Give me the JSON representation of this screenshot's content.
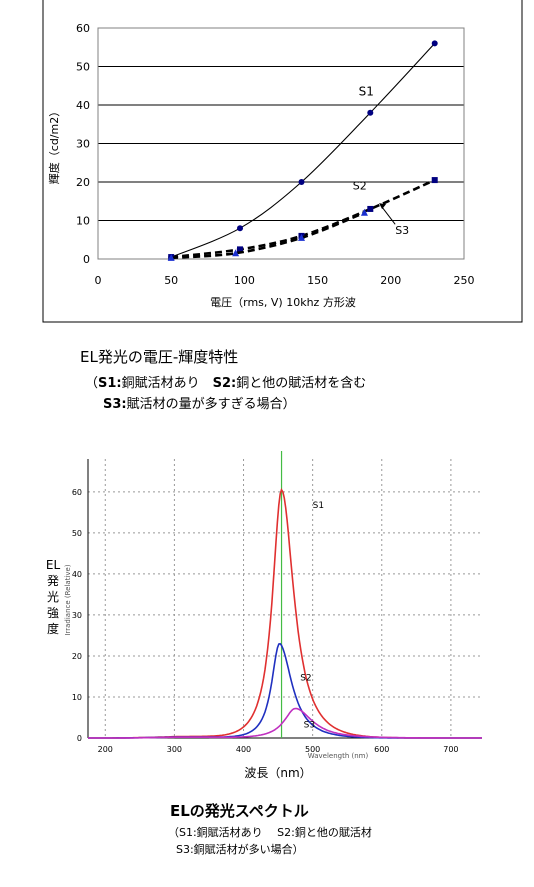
{
  "chart_data": [
    {
      "type": "line",
      "title": "",
      "xlabel": "電圧（rms, V) 10khz 方形波",
      "ylabel": "輝度（cd/m2）",
      "xlim": [
        0,
        250
      ],
      "ylim": [
        0,
        60
      ],
      "x_ticks": [
        0,
        50,
        100,
        150,
        200,
        250
      ],
      "y_ticks": [
        0,
        10,
        20,
        30,
        40,
        50,
        60
      ],
      "grid": "horizontal",
      "series": [
        {
          "name": "S1",
          "style": "solid",
          "marker": "circle",
          "color": "#000080",
          "x": [
            50,
            97,
            139,
            186,
            230
          ],
          "y": [
            0.5,
            8,
            20,
            38,
            56
          ]
        },
        {
          "name": "S2",
          "style": "dashed",
          "marker": "square",
          "color": "#000080",
          "x": [
            50,
            97,
            139,
            186,
            230
          ],
          "y": [
            0.5,
            2.5,
            6,
            13,
            20.5
          ]
        },
        {
          "name": "S3",
          "style": "dashed",
          "marker": "triangle",
          "color": "#1a2fd0",
          "x": [
            50,
            94,
            139,
            182
          ],
          "y": [
            0.3,
            1.5,
            5.5,
            12
          ]
        }
      ],
      "annotations": [
        {
          "text": "S1",
          "x": 178,
          "y": 42.5
        },
        {
          "text": "S2",
          "x": 174,
          "y": 18
        },
        {
          "text": "S3",
          "x": 203,
          "y": 6.5
        }
      ]
    },
    {
      "type": "line",
      "title": "",
      "xlabel": "波長（nm）",
      "x_ticks": [
        "200",
        "300",
        "400",
        "500",
        "600",
        "700"
      ],
      "y_ticks": [
        "0",
        "10",
        "20",
        "30",
        "40",
        "50",
        "60"
      ],
      "xlim": [
        175,
        745
      ],
      "ylim": [
        0,
        68
      ],
      "grid": "dotted",
      "inner_xlabel": "Wavelength (nm)",
      "inner_ylabel": "Irradiance (Relative)",
      "ylabel": [
        "EL",
        "発",
        "光",
        "強",
        "度"
      ],
      "marker_line": {
        "x": 455,
        "color": "#44bb44"
      },
      "series": [
        {
          "name": "S1",
          "color": "#e03030",
          "peak_x": 455,
          "peak_y": 60.5
        },
        {
          "name": "S2",
          "color": "#2030c0",
          "peak_x": 452,
          "peak_y": 23
        },
        {
          "name": "S3",
          "color": "#c030c0",
          "peak_x": 475,
          "peak_y": 7.2
        }
      ],
      "annotations": [
        {
          "text": "S1",
          "x": 500,
          "y": 56
        },
        {
          "text": "S2",
          "x": 482,
          "y": 14
        },
        {
          "text": "S3",
          "x": 487,
          "y": 2.5
        }
      ]
    }
  ],
  "caption1": {
    "title": "EL発光の電圧-輝度特性",
    "line1_prefix": "（",
    "line1_s1": "S1:",
    "line1_s1_text": "銅賦活材あり　",
    "line1_s2": "S2:",
    "line1_s2_text": "銅と他の賦活材を含む",
    "line2_s3": "S3:",
    "line2_s3_text": "賦活材の量が多すぎる場合）"
  },
  "caption2": {
    "title": "ELの発光スペクトル",
    "line1": "（S1:銅賦活材あり　 S2:銅と他の賦活材",
    "line2": "S3:銅賦活材が多い場合）"
  }
}
